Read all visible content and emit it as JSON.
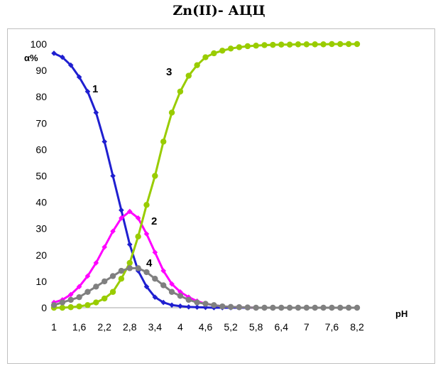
{
  "chart_data": {
    "type": "line",
    "title": "Zn(II)- АЦЦ",
    "xlabel": "pH",
    "ylabel": "α%",
    "xlim": [
      1,
      8.2
    ],
    "ylim": [
      0,
      100
    ],
    "x_ticks": [
      "1",
      "1,6",
      "2,2",
      "2,8",
      "3,4",
      "4",
      "4,6",
      "5,2",
      "5,8",
      "6,4",
      "7",
      "7,6",
      "8,2"
    ],
    "y_ticks": [
      "0",
      "10",
      "20",
      "30",
      "40",
      "50",
      "60",
      "70",
      "80",
      "90",
      "100"
    ],
    "grid": false,
    "legend": "none",
    "x": [
      1.0,
      1.2,
      1.4,
      1.6,
      1.8,
      2.0,
      2.2,
      2.4,
      2.6,
      2.8,
      3.0,
      3.2,
      3.4,
      3.6,
      3.8,
      4.0,
      4.2,
      4.4,
      4.6,
      4.8,
      5.0,
      5.2,
      5.4,
      5.6,
      5.8,
      6.0,
      6.2,
      6.4,
      6.6,
      6.8,
      7.0,
      7.2,
      7.4,
      7.6,
      7.8,
      8.0,
      8.2
    ],
    "series": [
      {
        "name": "1",
        "color": "#1f1fd0",
        "marker": "diamond",
        "values": [
          96.5,
          95,
          92,
          87.5,
          82,
          74,
          63,
          50,
          37,
          24,
          14,
          8,
          4,
          2,
          1,
          0.6,
          0.3,
          0.2,
          0.1,
          0,
          0,
          0,
          0,
          0,
          0,
          0,
          0,
          0,
          0,
          0,
          0,
          0,
          0,
          0,
          0,
          0,
          0
        ]
      },
      {
        "name": "2",
        "color": "#ff00ff",
        "marker": "diamond",
        "values": [
          2,
          3,
          5,
          8,
          12,
          17,
          23,
          29,
          34,
          36.5,
          34,
          28,
          21,
          14,
          9,
          6,
          4,
          2.5,
          1.5,
          1,
          0.5,
          0.3,
          0.2,
          0.1,
          0,
          0,
          0,
          0,
          0,
          0,
          0,
          0,
          0,
          0,
          0,
          0,
          0
        ]
      },
      {
        "name": "3",
        "color": "#99cc00",
        "marker": "circle",
        "values": [
          0,
          0,
          0.2,
          0.5,
          1,
          2,
          3.5,
          6,
          11,
          17,
          27,
          39,
          50,
          63,
          74,
          82,
          88,
          92,
          95,
          96.5,
          97.5,
          98.3,
          98.8,
          99.2,
          99.4,
          99.6,
          99.7,
          99.8,
          99.8,
          99.9,
          99.9,
          99.9,
          99.9,
          100,
          100,
          100,
          100
        ]
      },
      {
        "name": "4",
        "color": "#808080",
        "marker": "circle",
        "values": [
          1,
          2,
          3,
          4,
          6,
          8,
          10,
          12,
          14,
          15,
          15,
          13.5,
          11,
          8.5,
          6,
          4.5,
          3,
          2,
          1.5,
          1,
          0.5,
          0.3,
          0.2,
          0.1,
          0,
          0,
          0,
          0,
          0,
          0,
          0,
          0,
          0,
          0,
          0,
          0,
          0
        ]
      }
    ],
    "curve_labels": [
      {
        "text": "1",
        "series": 0
      },
      {
        "text": "2",
        "series": 1
      },
      {
        "text": "3",
        "series": 2
      },
      {
        "text": "4",
        "series": 3
      }
    ]
  }
}
